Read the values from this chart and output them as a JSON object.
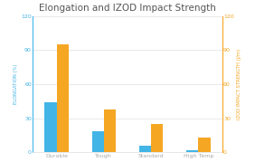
{
  "title": "Elongation and IZOD Impact Strength",
  "categories": [
    "Durable",
    "Tough",
    "Standard",
    "High Temp"
  ],
  "elongation": [
    44,
    19,
    6,
    2
  ],
  "izod": [
    95,
    38,
    25,
    13
  ],
  "bar_color_blue": "#42b4e6",
  "bar_color_orange": "#f5a623",
  "left_axis_label": "ELONGATION (%)",
  "right_axis_label": "IZOD IMPACT STRENGTH (J/m)",
  "left_ylim": [
    0,
    120
  ],
  "right_ylim": [
    0,
    120
  ],
  "left_ticks": [
    0,
    30,
    60,
    90,
    120
  ],
  "right_ticks": [
    0,
    30,
    60,
    90,
    120
  ],
  "title_fontsize": 7.5,
  "axis_label_fontsize": 3.8,
  "tick_fontsize": 4.5,
  "background_color": "#ffffff",
  "grid_color": "#e0e0e0",
  "left_axis_color": "#42b4e6",
  "right_axis_color": "#f5a623",
  "text_color": "#aaaaaa",
  "bar_width": 0.25
}
